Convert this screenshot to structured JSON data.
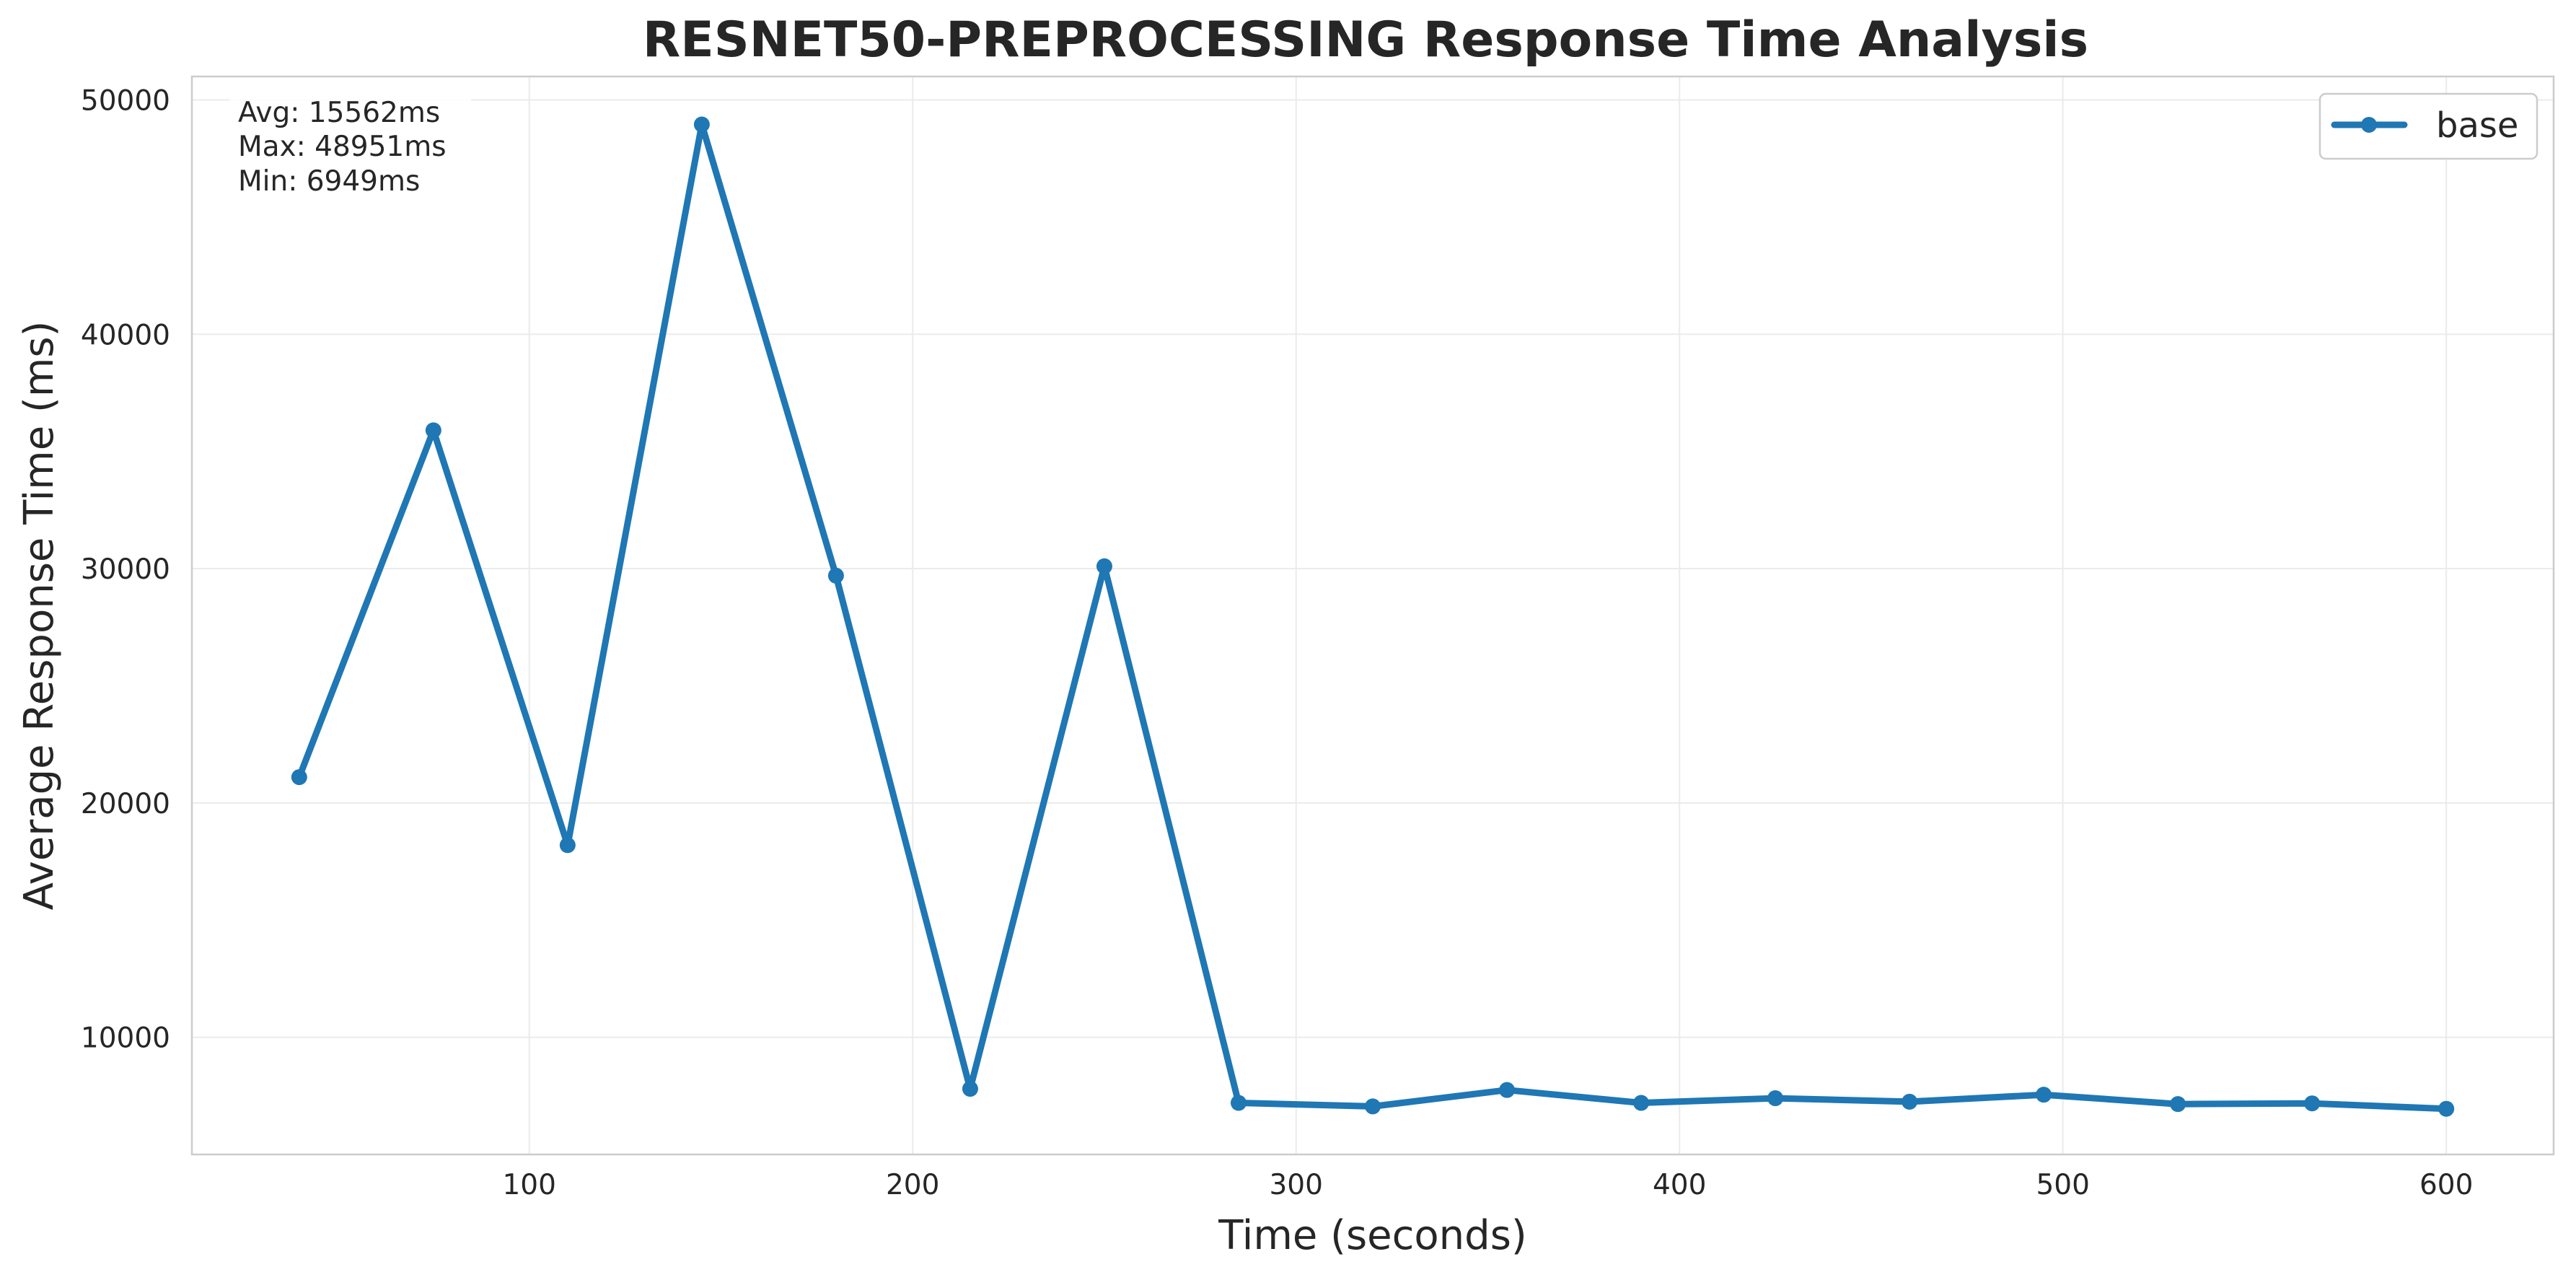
{
  "chart_data": {
    "type": "line",
    "title": "RESNET50-PREPROCESSING Response Time Analysis",
    "xlabel": "Time (seconds)",
    "ylabel": "Average Response Time (ms)",
    "xlim": [
      12,
      628
    ],
    "ylim": [
      5000,
      51000
    ],
    "xticks": [
      100,
      200,
      300,
      400,
      500,
      600
    ],
    "yticks": [
      10000,
      20000,
      30000,
      40000,
      50000
    ],
    "grid": true,
    "legend_position": "top-right",
    "stats": [
      "Avg: 15562ms",
      "Max: 48951ms",
      "Min: 6949ms"
    ],
    "series": [
      {
        "name": "base",
        "color": "#1f77b4",
        "marker": "circle",
        "x": [
          40,
          75,
          110,
          145,
          180,
          215,
          250,
          285,
          320,
          355,
          390,
          425,
          460,
          495,
          530,
          565,
          600
        ],
        "y": [
          21100,
          35900,
          18200,
          48951,
          29700,
          7800,
          30100,
          7200,
          7050,
          7750,
          7200,
          7400,
          7250,
          7550,
          7150,
          7180,
          6949
        ]
      }
    ]
  }
}
